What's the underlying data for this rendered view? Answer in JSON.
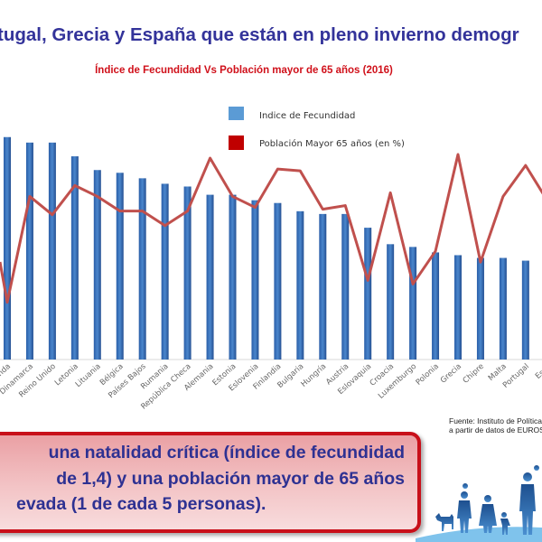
{
  "header": {
    "title": "tugal, Grecia y España que están en pleno invierno demogr"
  },
  "chart_data": {
    "type": "bar+line",
    "title": "Índice de Fecundidad Vs Población mayor de 65 años (2016)",
    "categories": [
      "Irlanda",
      "Dinamarca",
      "Reino Unido",
      "Letonia",
      "Lituania",
      "Bélgica",
      "Países Bajos",
      "Rumania",
      "República Checa",
      "Alemania",
      "Estonia",
      "Eslovenia",
      "Finlandia",
      "Bulgaria",
      "Hungría",
      "Austria",
      "Eslovaquia",
      "Croacia",
      "Luxemburgo",
      "Polonia",
      "Grecia",
      "Chipre",
      "Malta",
      "Portugal",
      "España"
    ],
    "category_labels_visible": [
      "nda",
      "Dinamarca",
      "Reino Unido",
      "Letonia",
      "Lituania",
      "Bélgica",
      "Países Bajos",
      "Rumania",
      "República Checa",
      "Alemania",
      "Estonia",
      "Eslovenia",
      "Finlandia",
      "Bulgaria",
      "Hungría",
      "Austria",
      "Eslovaquia",
      "Croacia",
      "Luxemburgo",
      "Polonia",
      "Grecia",
      "Chipre",
      "Malta",
      "Portugal",
      "Espa"
    ],
    "series": [
      {
        "name": "Indice de Fecundidad",
        "type": "bar",
        "color": "#3f78c0",
        "axis": "left",
        "values": [
          1.81,
          1.79,
          1.79,
          1.74,
          1.69,
          1.68,
          1.66,
          1.64,
          1.63,
          1.6,
          1.6,
          1.58,
          1.57,
          1.54,
          1.53,
          1.53,
          1.48,
          1.42,
          1.41,
          1.39,
          1.38,
          1.37,
          1.37,
          1.36,
          1.34
        ]
      },
      {
        "name": "Población Mayor 65 años (en %)",
        "type": "line",
        "color": "#c0392b",
        "axis": "right",
        "values": [
          13.2,
          19.0,
          18.0,
          19.6,
          19.0,
          18.2,
          18.2,
          17.4,
          18.2,
          21.1,
          19.0,
          18.4,
          20.5,
          20.4,
          18.3,
          18.5,
          14.4,
          19.2,
          14.2,
          16.0,
          21.3,
          15.4,
          19.0,
          20.7,
          18.7
        ]
      }
    ],
    "ylim_left": [
      1.0,
      1.85
    ],
    "ylim_right": [
      8,
      22
    ],
    "legend_placement": "top-center",
    "grid": false
  },
  "source": {
    "line1": "Fuente: Instituto de Política",
    "line2": "a partir de datos de EUROS"
  },
  "callout": {
    "line1": "una natalidad crítica (índice de fecundidad",
    "line2": "de 1,4) y una población mayor de 65 años",
    "line3": "evada (1 de cada 5 personas)."
  }
}
